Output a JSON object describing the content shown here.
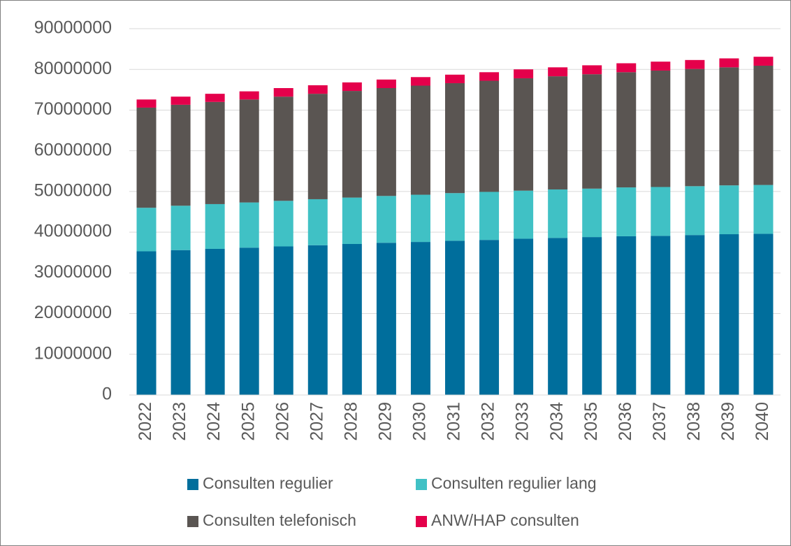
{
  "chart_data": {
    "type": "stacked_bar",
    "categories": [
      "2022",
      "2023",
      "2024",
      "2025",
      "2026",
      "2027",
      "2028",
      "2029",
      "2030",
      "2031",
      "2032",
      "2033",
      "2034",
      "2035",
      "2036",
      "2037",
      "2038",
      "2039",
      "2040"
    ],
    "series": [
      {
        "name": "Consulten regulier",
        "color": "#006e9c",
        "values": [
          35300000,
          35600000,
          35900000,
          36200000,
          36500000,
          36800000,
          37100000,
          37400000,
          37600000,
          37900000,
          38100000,
          38400000,
          38600000,
          38800000,
          39000000,
          39100000,
          39300000,
          39500000,
          39600000
        ]
      },
      {
        "name": "Consulten regulier lang",
        "color": "#40c1c5",
        "values": [
          10700000,
          10900000,
          11000000,
          11100000,
          11200000,
          11300000,
          11400000,
          11500000,
          11600000,
          11700000,
          11800000,
          11800000,
          11900000,
          11900000,
          12000000,
          12000000,
          12000000,
          12000000,
          12000000
        ]
      },
      {
        "name": "Consulten telefonisch",
        "color": "#5a5552",
        "values": [
          24600000,
          24800000,
          25100000,
          25300000,
          25600000,
          25900000,
          26200000,
          26500000,
          26800000,
          27000000,
          27300000,
          27600000,
          27800000,
          28100000,
          28300000,
          28600000,
          28800000,
          29000000,
          29300000
        ]
      },
      {
        "name": "ANW/HAP consulten",
        "color": "#e4004b",
        "values": [
          2000000,
          2000000,
          2000000,
          2000000,
          2100000,
          2100000,
          2100000,
          2100000,
          2100000,
          2100000,
          2100000,
          2200000,
          2200000,
          2200000,
          2200000,
          2200000,
          2200000,
          2200000,
          2200000
        ]
      }
    ],
    "ylim": [
      0,
      90000000
    ],
    "yticks": [
      0,
      10000000,
      20000000,
      30000000,
      40000000,
      50000000,
      60000000,
      70000000,
      80000000,
      90000000
    ],
    "grid": true,
    "legend": "bottom"
  }
}
